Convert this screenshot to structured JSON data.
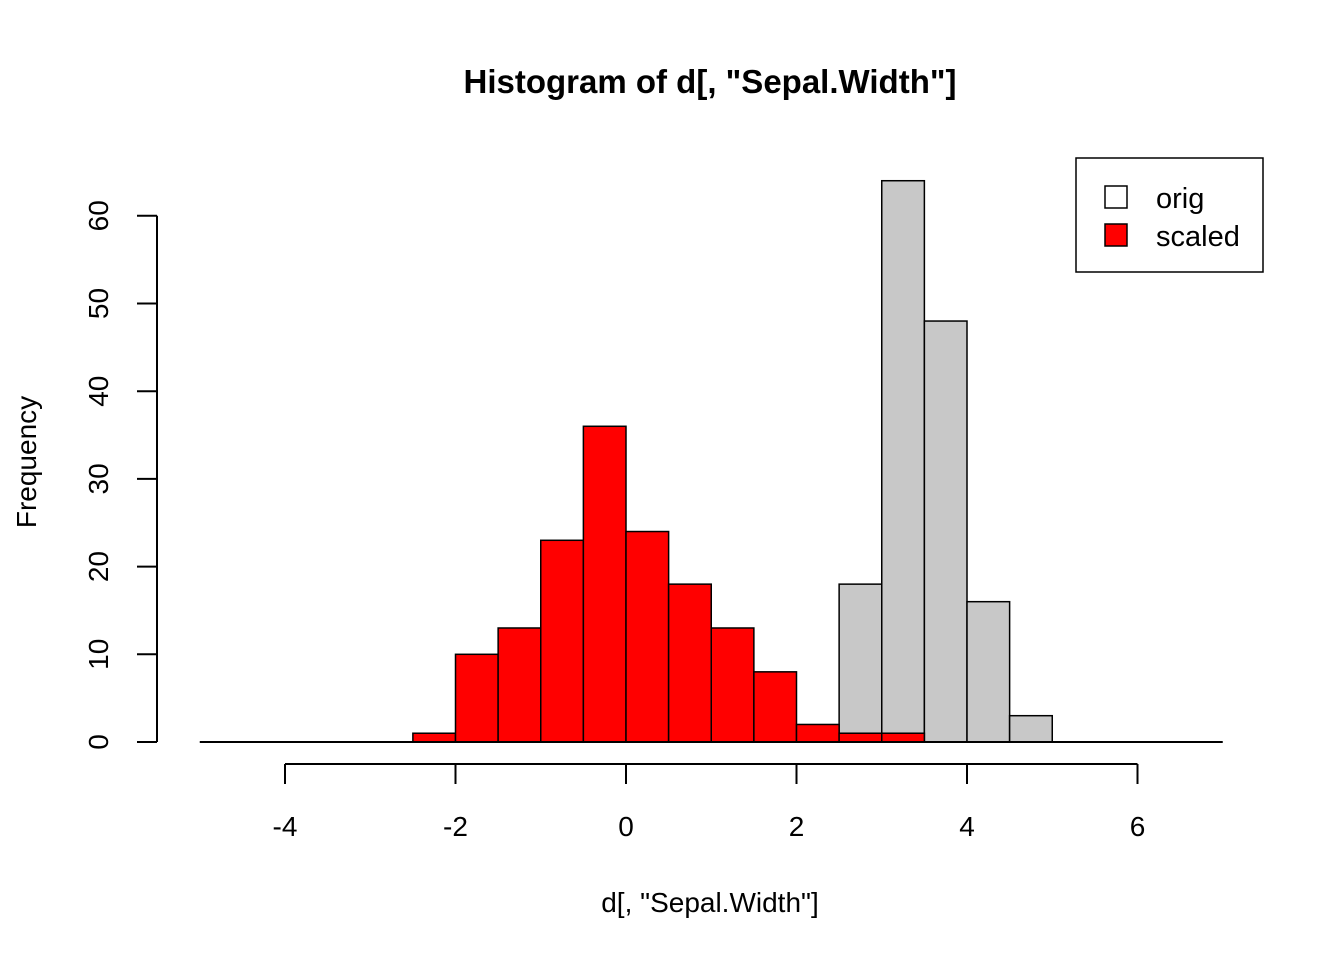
{
  "chart_data": {
    "type": "bar",
    "title": "Histogram of d[, \"Sepal.Width\"]",
    "xlabel": "d[, \"Sepal.Width\"]",
    "ylabel": "Frequency",
    "xlim": [
      -5,
      7
    ],
    "ylim": [
      0,
      64
    ],
    "x_ticks": [
      "-4",
      "-2",
      "0",
      "2",
      "4",
      "6"
    ],
    "x_tick_values": [
      -4,
      -2,
      0,
      2,
      4,
      6
    ],
    "y_ticks": [
      "0",
      "10",
      "20",
      "30",
      "40",
      "50",
      "60"
    ],
    "y_tick_values": [
      0,
      10,
      20,
      30,
      40,
      50,
      60
    ],
    "grid": false,
    "legend_position": "top-right",
    "bin_edges": [
      -5,
      -4.5,
      -4,
      -3.5,
      -3,
      -2.5,
      -2,
      -1.5,
      -1,
      -0.5,
      0,
      0.5,
      1,
      1.5,
      2,
      2.5,
      3,
      3.5,
      4,
      4.5,
      5,
      5.5,
      6,
      6.5,
      7
    ],
    "series": [
      {
        "name": "orig",
        "color": "#c8c8c8",
        "values": [
          0,
          0,
          0,
          0,
          0,
          0,
          0,
          0,
          0,
          0,
          0,
          0,
          0,
          0,
          0,
          18,
          64,
          48,
          16,
          3,
          0,
          0,
          0,
          0
        ]
      },
      {
        "name": "scaled",
        "color": "#ff0000",
        "values": [
          0,
          0,
          0,
          0,
          0,
          1,
          10,
          13,
          23,
          36,
          24,
          18,
          13,
          8,
          2,
          1,
          1,
          0,
          0,
          0,
          0,
          0,
          0,
          0
        ]
      }
    ]
  }
}
